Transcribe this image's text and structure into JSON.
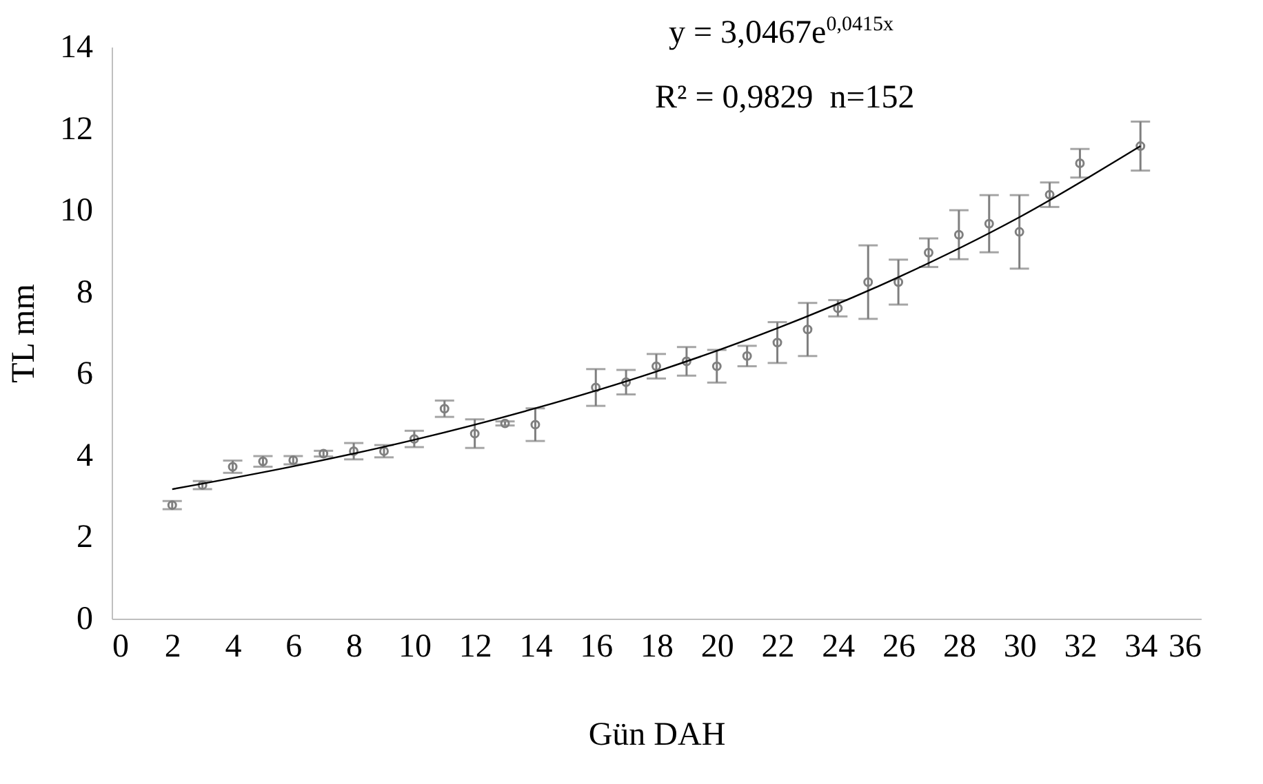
{
  "chart_data": {
    "type": "scatter",
    "xlabel": "Gün DAH",
    "ylabel": "TL mm",
    "annotations": [
      "y = 3,0467e$^{0,0415x}$",
      "R² = 0,9829  n=152"
    ],
    "xlim": [
      0,
      36
    ],
    "xticks": [
      0,
      2,
      4,
      6,
      8,
      10,
      12,
      14,
      16,
      18,
      20,
      22,
      24,
      26,
      28,
      30,
      32,
      34,
      36
    ],
    "ylim": [
      0,
      14
    ],
    "yticks": [
      0,
      2,
      4,
      6,
      8,
      10,
      12,
      14
    ],
    "marker": "circle",
    "series": [
      {
        "color": "#7f7f7f",
        "x": [
          2,
          3,
          4,
          5,
          6,
          7,
          8,
          9,
          10,
          11,
          12,
          13,
          14,
          16,
          17,
          18,
          19,
          20,
          21,
          22,
          23,
          24,
          25,
          26,
          27,
          28,
          29,
          30,
          31,
          32,
          34
        ],
        "values": [
          2.78,
          3.27,
          3.72,
          3.85,
          3.88,
          4.04,
          4.1,
          4.1,
          4.4,
          5.14,
          4.53,
          4.78,
          4.75,
          5.66,
          5.79,
          6.18,
          6.3,
          6.18,
          6.43,
          6.76,
          7.08,
          7.6,
          8.24,
          8.24,
          8.96,
          9.4,
          9.67,
          9.47,
          10.38,
          11.15,
          11.57
        ],
        "errors": [
          0.1,
          0.1,
          0.15,
          0.13,
          0.1,
          0.07,
          0.2,
          0.15,
          0.2,
          0.2,
          0.35,
          0.05,
          0.4,
          0.45,
          0.3,
          0.3,
          0.35,
          0.4,
          0.25,
          0.5,
          0.65,
          0.2,
          0.9,
          0.55,
          0.35,
          0.6,
          0.7,
          0.9,
          0.3,
          0.35,
          0.6
        ]
      },
      {
        "type": "line",
        "color": "#000000",
        "marker": "none",
        "x": [
          2,
          6,
          10,
          14,
          18,
          22,
          26,
          30,
          34
        ],
        "values": [
          3.17,
          3.73,
          4.38,
          5.15,
          6.05,
          7.11,
          8.36,
          9.83,
          11.57
        ]
      }
    ]
  }
}
